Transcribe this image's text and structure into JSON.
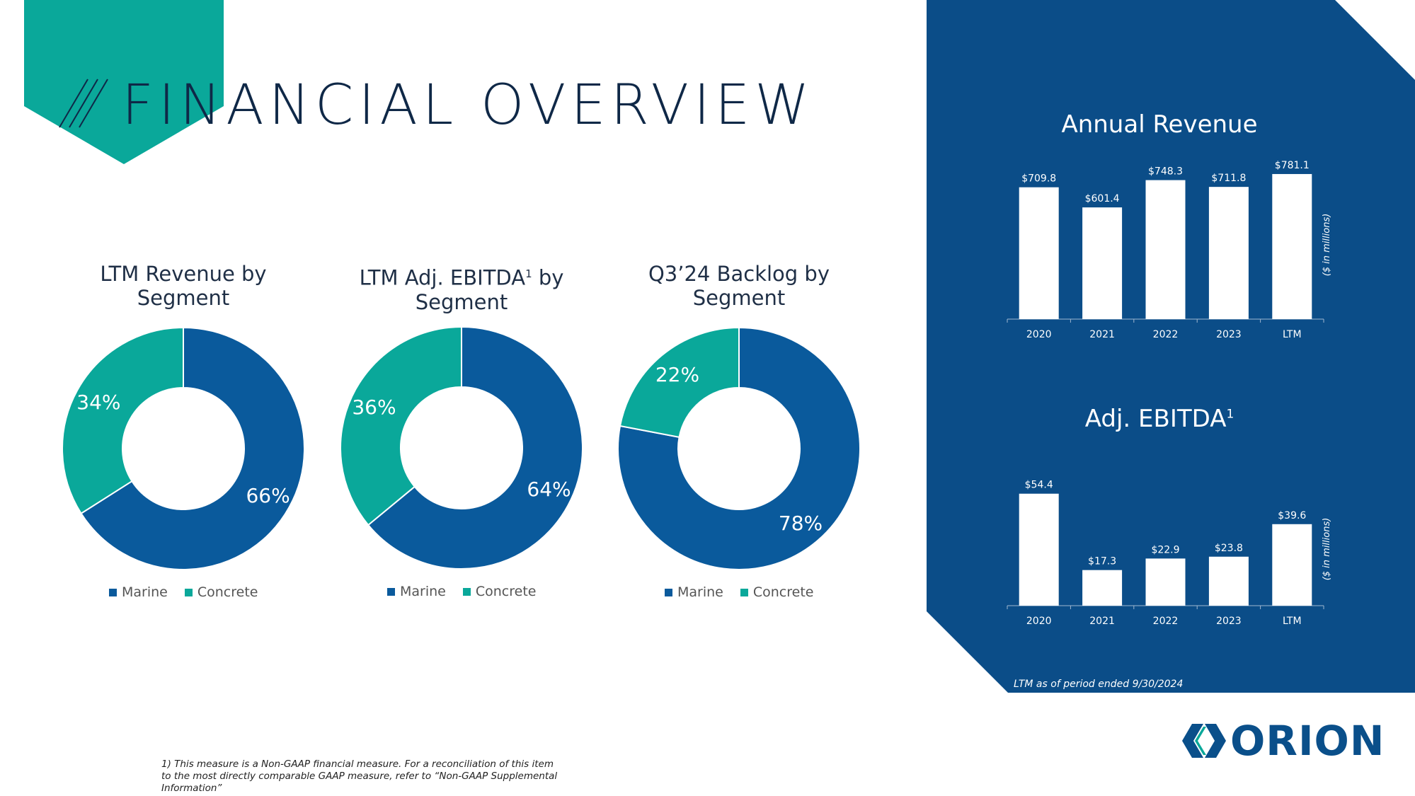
{
  "title": "FINANCIAL OVERVIEW",
  "colors": {
    "marine": "#0a5a9c",
    "concrete": "#0aa89a",
    "navy_panel": "#0b4d88",
    "title": "#0f2847"
  },
  "donuts": [
    {
      "title_line1": "LTM Revenue by",
      "title_line2": "Segment",
      "title_sup": ""
    },
    {
      "title_line1a": "LTM Adj. EBITDA",
      "title_sup": "1",
      "title_line1b": " by",
      "title_line2": "Segment"
    },
    {
      "title_line1": "Q3’24 Backlog by",
      "title_line2": "Segment",
      "title_sup": ""
    }
  ],
  "legend": {
    "marine": "Marine",
    "concrete": "Concrete"
  },
  "bar_charts": {
    "revenue": {
      "title": "Annual Revenue"
    },
    "ebitda": {
      "title": "Adj. EBITDA",
      "title_sup": "1"
    }
  },
  "ltm_note": "LTM as of period ended 9/30/2024",
  "footnote": "1) This measure is a Non-GAAP financial measure. For a reconciliation of this item to the most directly comparable GAAP measure, refer to “Non-GAAP Supplemental Information”",
  "logo_text": "ORION",
  "chart_data": [
    {
      "type": "pie",
      "title": "LTM Revenue by Segment",
      "categories": [
        "Marine",
        "Concrete"
      ],
      "values": [
        66,
        34
      ],
      "labels": [
        "66%",
        "34%"
      ],
      "legend": "bottom"
    },
    {
      "type": "pie",
      "title": "LTM Adj. EBITDA by Segment",
      "categories": [
        "Marine",
        "Concrete"
      ],
      "values": [
        64,
        36
      ],
      "labels": [
        "64%",
        "36%"
      ],
      "legend": "bottom"
    },
    {
      "type": "pie",
      "title": "Q3’24 Backlog by Segment",
      "categories": [
        "Marine",
        "Concrete"
      ],
      "values": [
        78,
        22
      ],
      "labels": [
        "78%",
        "22%"
      ],
      "legend": "bottom"
    },
    {
      "type": "bar",
      "title": "Annual Revenue",
      "categories": [
        "2020",
        "2021",
        "2022",
        "2023",
        "LTM"
      ],
      "values": [
        709.8,
        601.4,
        748.3,
        711.8,
        781.1
      ],
      "labels": [
        "$709.8",
        "$601.4",
        "$748.3",
        "$711.8",
        "$781.1"
      ],
      "ylabel": "($ in millions)",
      "ylim": [
        0,
        800
      ],
      "grid": false
    },
    {
      "type": "bar",
      "title": "Adj. EBITDA",
      "categories": [
        "2020",
        "2021",
        "2022",
        "2023",
        "LTM"
      ],
      "values": [
        54.4,
        17.3,
        22.9,
        23.8,
        39.6
      ],
      "labels": [
        "$54.4",
        "$17.3",
        "$22.9",
        "$23.8",
        "$39.6"
      ],
      "ylabel": "($ in millions)",
      "ylim": [
        0,
        55
      ],
      "grid": false
    }
  ]
}
